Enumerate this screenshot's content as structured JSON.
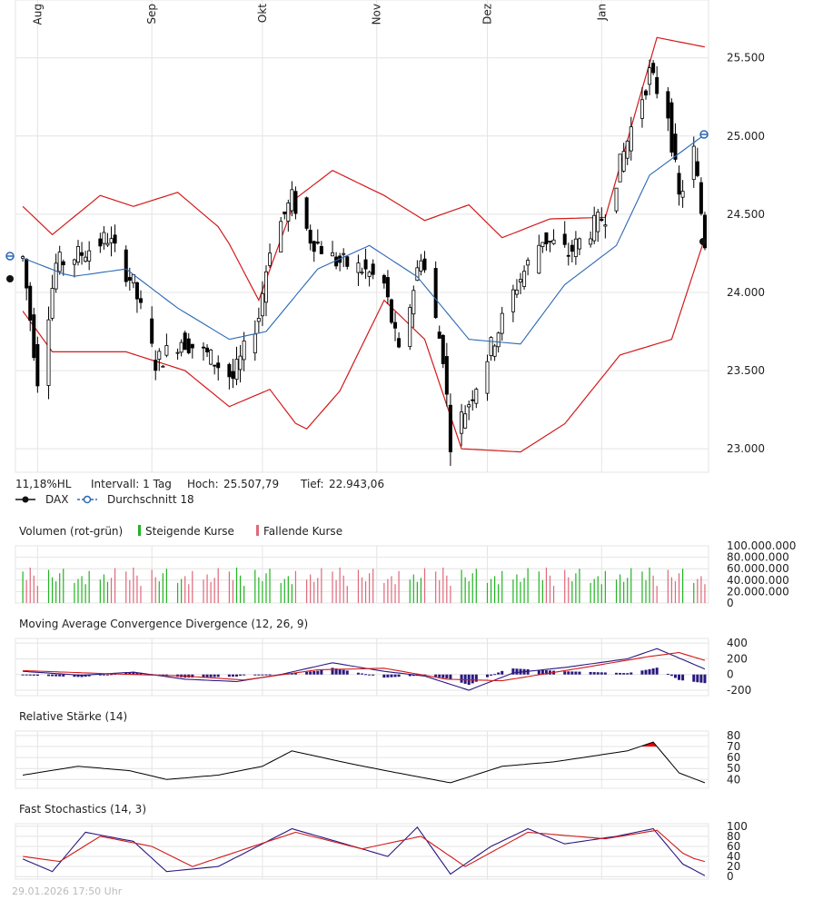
{
  "colors": {
    "grid": "#e4e4e4",
    "frame": "#d6d6d6",
    "candle": "#000000",
    "average": "#2b67b4",
    "bands": "#d21a1a",
    "volume_up": "#22b322",
    "volume_down": "#e0687a",
    "macd_line": "#2a1780",
    "macd_signal": "#d21a1a",
    "macd_hist": "#2a1780",
    "rsi_line": "#000000",
    "rsi_fill": "#ee0000",
    "stoch_k": "#2a1780",
    "stoch_d": "#d21a1a"
  },
  "main_chart": {
    "x_labels": [
      "Aug",
      "Sep",
      "Okt",
      "Nov",
      "Dez",
      "Jan"
    ],
    "y_ticks": [
      23000,
      23500,
      24000,
      24500,
      25000,
      25500
    ],
    "y_tick_labels": [
      "23.000",
      "23.500",
      "24.000",
      "24.500",
      "25.000",
      "25.500"
    ],
    "ylim": [
      22850,
      25870
    ],
    "stats": {
      "range_text": "11,18%HL",
      "interval_text": "Intervall: 1 Tag",
      "high_label": "Hoch:",
      "high_value": "25.507,79",
      "low_label": "Tief:",
      "low_value": "22.943,06"
    },
    "legend": {
      "dax": "DAX",
      "average": "Durchschnitt 18"
    }
  },
  "volume_panel": {
    "title": "Volumen (rot-grün)",
    "legend_up": "Steigende Kurse",
    "legend_down": "Fallende Kurse",
    "y_tick_labels": [
      "100.000.000",
      "80.000.000",
      "60.000.000",
      "40.000.000",
      "20.000.000",
      "0"
    ],
    "ylim": [
      0,
      100000000
    ]
  },
  "macd_panel": {
    "title": "Moving Average Convergence Divergence (12, 26, 9)",
    "y_ticks": [
      400,
      200,
      0,
      -200
    ],
    "y_tick_labels": [
      "400",
      "200",
      "0",
      "-200"
    ],
    "ylim": [
      -270,
      460
    ]
  },
  "rsi_panel": {
    "title": "Relative Stärke (14)",
    "y_ticks": [
      80,
      70,
      60,
      50,
      40
    ],
    "y_tick_labels": [
      "80",
      "70",
      "60",
      "50",
      "40"
    ],
    "ylim": [
      32,
      84
    ]
  },
  "stoch_panel": {
    "title": "Fast Stochastics (14, 3)",
    "y_ticks": [
      100,
      80,
      60,
      40,
      20,
      0
    ],
    "y_tick_labels": [
      "100",
      "80",
      "60",
      "40",
      "20",
      "0"
    ],
    "ylim": [
      -5,
      105
    ]
  },
  "footer": {
    "timestamp": "29.01.2026 17:50 Uhr"
  },
  "chart_data": [
    {
      "type": "line",
      "name": "DAX",
      "x_ticks": [
        "Aug",
        "Sep",
        "Okt",
        "Nov",
        "Dez",
        "Jan"
      ],
      "close_path": [
        {
          "d": "2025-07-28",
          "v": 24220
        },
        {
          "d": "2025-08-01",
          "v": 23450
        },
        {
          "d": "2025-08-06",
          "v": 24180
        },
        {
          "d": "2025-08-13",
          "v": 24250
        },
        {
          "d": "2025-08-20",
          "v": 24350
        },
        {
          "d": "2025-08-27",
          "v": 24050
        },
        {
          "d": "2025-09-02",
          "v": 23550
        },
        {
          "d": "2025-09-09",
          "v": 23700
        },
        {
          "d": "2025-09-16",
          "v": 23600
        },
        {
          "d": "2025-09-23",
          "v": 23450
        },
        {
          "d": "2025-09-30",
          "v": 23850
        },
        {
          "d": "2025-10-03",
          "v": 24300
        },
        {
          "d": "2025-10-09",
          "v": 24600
        },
        {
          "d": "2025-10-14",
          "v": 24350
        },
        {
          "d": "2025-10-21",
          "v": 24200
        },
        {
          "d": "2025-10-28",
          "v": 24150
        },
        {
          "d": "2025-11-03",
          "v": 24050
        },
        {
          "d": "2025-11-07",
          "v": 23600
        },
        {
          "d": "2025-11-13",
          "v": 24250
        },
        {
          "d": "2025-11-19",
          "v": 23600
        },
        {
          "d": "2025-11-21",
          "v": 23050
        },
        {
          "d": "2025-11-26",
          "v": 23300
        },
        {
          "d": "2025-12-02",
          "v": 23650
        },
        {
          "d": "2025-12-09",
          "v": 24050
        },
        {
          "d": "2025-12-16",
          "v": 24350
        },
        {
          "d": "2025-12-23",
          "v": 24250
        },
        {
          "d": "2026-01-02",
          "v": 24500
        },
        {
          "d": "2026-01-09",
          "v": 25050
        },
        {
          "d": "2026-01-14",
          "v": 25400
        },
        {
          "d": "2026-01-19",
          "v": 25150
        },
        {
          "d": "2026-01-22",
          "v": 24600
        },
        {
          "d": "2026-01-26",
          "v": 24900
        },
        {
          "d": "2026-01-29",
          "v": 24320
        }
      ],
      "average_18_path": [
        {
          "d": "2025-07-28",
          "v": 24220
        },
        {
          "d": "2025-08-10",
          "v": 24100
        },
        {
          "d": "2025-08-25",
          "v": 24150
        },
        {
          "d": "2025-09-08",
          "v": 23900
        },
        {
          "d": "2025-09-22",
          "v": 23700
        },
        {
          "d": "2025-10-02",
          "v": 23750
        },
        {
          "d": "2025-10-16",
          "v": 24150
        },
        {
          "d": "2025-10-30",
          "v": 24300
        },
        {
          "d": "2025-11-12",
          "v": 24100
        },
        {
          "d": "2025-11-26",
          "v": 23700
        },
        {
          "d": "2025-12-10",
          "v": 23670
        },
        {
          "d": "2025-12-22",
          "v": 24050
        },
        {
          "d": "2026-01-05",
          "v": 24300
        },
        {
          "d": "2026-01-14",
          "v": 24750
        },
        {
          "d": "2026-01-29",
          "v": 25010
        }
      ],
      "upper_band_path": [
        {
          "d": "2025-07-28",
          "v": 24550
        },
        {
          "d": "2025-08-05",
          "v": 24370
        },
        {
          "d": "2025-08-18",
          "v": 24620
        },
        {
          "d": "2025-08-27",
          "v": 24550
        },
        {
          "d": "2025-09-08",
          "v": 24640
        },
        {
          "d": "2025-09-20",
          "v": 24400
        },
        {
          "d": "2025-09-30",
          "v": 23950
        },
        {
          "d": "2025-10-10",
          "v": 24600
        },
        {
          "d": "2025-10-20",
          "v": 24780
        },
        {
          "d": "2025-11-03",
          "v": 24620
        },
        {
          "d": "2025-11-14",
          "v": 24460
        },
        {
          "d": "2025-11-26",
          "v": 24560
        },
        {
          "d": "2025-12-05",
          "v": 24350
        },
        {
          "d": "2025-12-18",
          "v": 24470
        },
        {
          "d": "2026-01-02",
          "v": 24480
        },
        {
          "d": "2026-01-16",
          "v": 25630
        },
        {
          "d": "2026-01-29",
          "v": 25570
        }
      ],
      "lower_band_path": [
        {
          "d": "2025-07-28",
          "v": 23880
        },
        {
          "d": "2025-08-05",
          "v": 23620
        },
        {
          "d": "2025-08-25",
          "v": 23620
        },
        {
          "d": "2025-09-10",
          "v": 23500
        },
        {
          "d": "2025-09-22",
          "v": 23270
        },
        {
          "d": "2025-10-03",
          "v": 23380
        },
        {
          "d": "2025-10-12",
          "v": 23100
        },
        {
          "d": "2025-10-22",
          "v": 23370
        },
        {
          "d": "2025-11-03",
          "v": 23950
        },
        {
          "d": "2025-11-14",
          "v": 23700
        },
        {
          "d": "2025-11-24",
          "v": 23000
        },
        {
          "d": "2025-12-10",
          "v": 22980
        },
        {
          "d": "2025-12-22",
          "v": 23160
        },
        {
          "d": "2026-01-06",
          "v": 23600
        },
        {
          "d": "2026-01-20",
          "v": 23700
        },
        {
          "d": "2026-01-29",
          "v": 24350
        }
      ]
    },
    {
      "type": "bar",
      "name": "Volumen (rot-grün)",
      "values_pattern_millions": [
        55,
        40,
        62,
        48,
        30,
        58,
        45,
        38,
        52,
        60,
        35,
        42,
        47,
        33,
        56,
        41,
        50,
        37,
        44,
        61
      ],
      "ylim": [
        0,
        100000000
      ]
    },
    {
      "type": "line",
      "name": "MACD (12, 26, 9)",
      "macd_path": [
        {
          "d": "2025-07-28",
          "v": 40
        },
        {
          "d": "2025-08-13",
          "v": -10
        },
        {
          "d": "2025-08-27",
          "v": 30
        },
        {
          "d": "2025-09-10",
          "v": -60
        },
        {
          "d": "2025-09-24",
          "v": -90
        },
        {
          "d": "2025-10-06",
          "v": 0
        },
        {
          "d": "2025-10-20",
          "v": 150
        },
        {
          "d": "2025-11-03",
          "v": 40
        },
        {
          "d": "2025-11-14",
          "v": -20
        },
        {
          "d": "2025-11-26",
          "v": -200
        },
        {
          "d": "2025-12-08",
          "v": 20
        },
        {
          "d": "2025-12-22",
          "v": 90
        },
        {
          "d": "2026-01-08",
          "v": 200
        },
        {
          "d": "2026-01-16",
          "v": 330
        },
        {
          "d": "2026-01-29",
          "v": 70
        }
      ],
      "signal_path": [
        {
          "d": "2025-07-28",
          "v": 50
        },
        {
          "d": "2025-08-20",
          "v": 10
        },
        {
          "d": "2025-09-10",
          "v": -20
        },
        {
          "d": "2025-09-26",
          "v": -70
        },
        {
          "d": "2025-10-16",
          "v": 60
        },
        {
          "d": "2025-11-03",
          "v": 80
        },
        {
          "d": "2025-11-20",
          "v": -60
        },
        {
          "d": "2025-12-05",
          "v": -80
        },
        {
          "d": "2025-12-26",
          "v": 80
        },
        {
          "d": "2026-01-14",
          "v": 230
        },
        {
          "d": "2026-01-22",
          "v": 280
        },
        {
          "d": "2026-01-29",
          "v": 180
        }
      ]
    },
    {
      "type": "area",
      "name": "Relative Stärke (14)",
      "rsi_path": [
        {
          "d": "2025-07-28",
          "v": 44
        },
        {
          "d": "2025-08-12",
          "v": 52
        },
        {
          "d": "2025-08-26",
          "v": 48
        },
        {
          "d": "2025-09-05",
          "v": 40
        },
        {
          "d": "2025-09-19",
          "v": 44
        },
        {
          "d": "2025-10-01",
          "v": 52
        },
        {
          "d": "2025-10-09",
          "v": 66
        },
        {
          "d": "2025-10-24",
          "v": 55
        },
        {
          "d": "2025-11-05",
          "v": 47
        },
        {
          "d": "2025-11-21",
          "v": 37
        },
        {
          "d": "2025-12-05",
          "v": 52
        },
        {
          "d": "2025-12-19",
          "v": 56
        },
        {
          "d": "2026-01-08",
          "v": 66
        },
        {
          "d": "2026-01-15",
          "v": 74
        },
        {
          "d": "2026-01-22",
          "v": 46
        },
        {
          "d": "2026-01-29",
          "v": 37
        }
      ],
      "overbought_level": 70
    },
    {
      "type": "line",
      "name": "Fast Stochastics (14, 3)",
      "k_path": [
        {
          "d": "2025-07-28",
          "v": 35
        },
        {
          "d": "2025-08-05",
          "v": 10
        },
        {
          "d": "2025-08-14",
          "v": 88
        },
        {
          "d": "2025-08-27",
          "v": 70
        },
        {
          "d": "2025-09-05",
          "v": 10
        },
        {
          "d": "2025-09-19",
          "v": 20
        },
        {
          "d": "2025-10-09",
          "v": 95
        },
        {
          "d": "2025-10-21",
          "v": 70
        },
        {
          "d": "2025-11-04",
          "v": 40
        },
        {
          "d": "2025-11-12",
          "v": 98
        },
        {
          "d": "2025-11-21",
          "v": 5
        },
        {
          "d": "2025-12-02",
          "v": 60
        },
        {
          "d": "2025-12-12",
          "v": 95
        },
        {
          "d": "2025-12-22",
          "v": 65
        },
        {
          "d": "2026-01-05",
          "v": 80
        },
        {
          "d": "2026-01-15",
          "v": 95
        },
        {
          "d": "2026-01-23",
          "v": 25
        },
        {
          "d": "2026-01-29",
          "v": 2
        }
      ],
      "d_path": [
        {
          "d": "2025-07-28",
          "v": 40
        },
        {
          "d": "2025-08-07",
          "v": 30
        },
        {
          "d": "2025-08-18",
          "v": 80
        },
        {
          "d": "2025-09-01",
          "v": 60
        },
        {
          "d": "2025-09-12",
          "v": 20
        },
        {
          "d": "2025-10-10",
          "v": 88
        },
        {
          "d": "2025-10-28",
          "v": 55
        },
        {
          "d": "2025-11-13",
          "v": 80
        },
        {
          "d": "2025-11-25",
          "v": 20
        },
        {
          "d": "2025-12-12",
          "v": 88
        },
        {
          "d": "2026-01-02",
          "v": 75
        },
        {
          "d": "2026-01-16",
          "v": 92
        },
        {
          "d": "2026-01-24",
          "v": 40
        },
        {
          "d": "2026-01-29",
          "v": 30
        }
      ]
    }
  ]
}
